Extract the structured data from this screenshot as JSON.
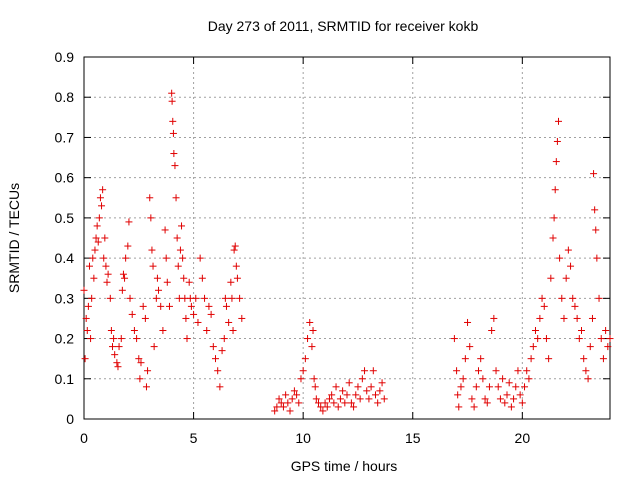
{
  "chart_data": {
    "type": "scatter",
    "title": "Day 273 of 2011, SRMTID for receiver kokb",
    "xlabel": "GPS time / hours",
    "ylabel": "SRMTID / TECUs",
    "xlim": [
      0,
      24
    ],
    "ylim": [
      0,
      0.9
    ],
    "grid": true,
    "marker": "+",
    "marker_color": "#e00000",
    "x_ticks": [
      0,
      5,
      10,
      15,
      20
    ],
    "x_tick_labels": [
      "0",
      "5",
      "10",
      "15",
      "20"
    ],
    "y_ticks": [
      0,
      0.1,
      0.2,
      0.3,
      0.4,
      0.5,
      0.6,
      0.7,
      0.8,
      0.9
    ],
    "y_tick_labels": [
      "0",
      "0.1",
      "0.2",
      "0.3",
      "0.4",
      "0.5",
      "0.6",
      "0.7",
      "0.8",
      "0.9"
    ],
    "series": [
      {
        "name": "SRMTID",
        "points": [
          [
            0.0,
            0.32
          ],
          [
            0.05,
            0.15
          ],
          [
            0.1,
            0.25
          ],
          [
            0.15,
            0.22
          ],
          [
            0.2,
            0.28
          ],
          [
            0.25,
            0.38
          ],
          [
            0.3,
            0.2
          ],
          [
            0.35,
            0.3
          ],
          [
            0.4,
            0.4
          ],
          [
            0.45,
            0.35
          ],
          [
            0.5,
            0.42
          ],
          [
            0.55,
            0.45
          ],
          [
            0.6,
            0.48
          ],
          [
            0.65,
            0.44
          ],
          [
            0.7,
            0.5
          ],
          [
            0.75,
            0.55
          ],
          [
            0.8,
            0.53
          ],
          [
            0.85,
            0.57
          ],
          [
            0.9,
            0.4
          ],
          [
            0.95,
            0.45
          ],
          [
            1.0,
            0.38
          ],
          [
            1.05,
            0.34
          ],
          [
            1.1,
            0.36
          ],
          [
            1.2,
            0.3
          ],
          [
            1.25,
            0.22
          ],
          [
            1.3,
            0.18
          ],
          [
            1.35,
            0.2
          ],
          [
            1.4,
            0.16
          ],
          [
            1.5,
            0.14
          ],
          [
            1.55,
            0.13
          ],
          [
            1.6,
            0.18
          ],
          [
            1.7,
            0.2
          ],
          [
            1.75,
            0.32
          ],
          [
            1.8,
            0.36
          ],
          [
            1.85,
            0.35
          ],
          [
            1.9,
            0.4
          ],
          [
            2.0,
            0.43
          ],
          [
            2.05,
            0.49
          ],
          [
            2.1,
            0.3
          ],
          [
            2.2,
            0.26
          ],
          [
            2.3,
            0.22
          ],
          [
            2.4,
            0.2
          ],
          [
            2.5,
            0.15
          ],
          [
            2.55,
            0.1
          ],
          [
            2.6,
            0.14
          ],
          [
            2.7,
            0.28
          ],
          [
            2.8,
            0.25
          ],
          [
            2.85,
            0.08
          ],
          [
            2.9,
            0.12
          ],
          [
            3.0,
            0.55
          ],
          [
            3.05,
            0.5
          ],
          [
            3.1,
            0.42
          ],
          [
            3.15,
            0.38
          ],
          [
            3.2,
            0.18
          ],
          [
            3.3,
            0.3
          ],
          [
            3.35,
            0.35
          ],
          [
            3.4,
            0.32
          ],
          [
            3.5,
            0.28
          ],
          [
            3.6,
            0.22
          ],
          [
            3.7,
            0.47
          ],
          [
            3.75,
            0.4
          ],
          [
            3.8,
            0.34
          ],
          [
            3.9,
            0.28
          ],
          [
            4.0,
            0.81
          ],
          [
            4.02,
            0.79
          ],
          [
            4.05,
            0.74
          ],
          [
            4.08,
            0.71
          ],
          [
            4.1,
            0.66
          ],
          [
            4.15,
            0.63
          ],
          [
            4.2,
            0.55
          ],
          [
            4.25,
            0.45
          ],
          [
            4.3,
            0.38
          ],
          [
            4.35,
            0.3
          ],
          [
            4.4,
            0.42
          ],
          [
            4.45,
            0.48
          ],
          [
            4.5,
            0.4
          ],
          [
            4.55,
            0.35
          ],
          [
            4.6,
            0.3
          ],
          [
            4.65,
            0.25
          ],
          [
            4.7,
            0.2
          ],
          [
            4.8,
            0.34
          ],
          [
            4.85,
            0.3
          ],
          [
            4.9,
            0.28
          ],
          [
            5.0,
            0.26
          ],
          [
            5.1,
            0.3
          ],
          [
            5.2,
            0.24
          ],
          [
            5.3,
            0.4
          ],
          [
            5.4,
            0.35
          ],
          [
            5.5,
            0.3
          ],
          [
            5.6,
            0.22
          ],
          [
            5.7,
            0.28
          ],
          [
            5.8,
            0.26
          ],
          [
            5.9,
            0.18
          ],
          [
            6.0,
            0.15
          ],
          [
            6.1,
            0.12
          ],
          [
            6.2,
            0.08
          ],
          [
            6.3,
            0.17
          ],
          [
            6.4,
            0.2
          ],
          [
            6.45,
            0.3
          ],
          [
            6.5,
            0.28
          ],
          [
            6.6,
            0.24
          ],
          [
            6.7,
            0.34
          ],
          [
            6.75,
            0.3
          ],
          [
            6.8,
            0.22
          ],
          [
            6.85,
            0.42
          ],
          [
            6.9,
            0.43
          ],
          [
            6.95,
            0.38
          ],
          [
            7.0,
            0.35
          ],
          [
            7.1,
            0.3
          ],
          [
            7.2,
            0.25
          ],
          [
            8.7,
            0.02
          ],
          [
            8.8,
            0.03
          ],
          [
            8.9,
            0.05
          ],
          [
            9.0,
            0.04
          ],
          [
            9.1,
            0.03
          ],
          [
            9.2,
            0.06
          ],
          [
            9.3,
            0.04
          ],
          [
            9.4,
            0.02
          ],
          [
            9.5,
            0.05
          ],
          [
            9.6,
            0.07
          ],
          [
            9.7,
            0.06
          ],
          [
            9.8,
            0.04
          ],
          [
            9.9,
            0.1
          ],
          [
            10.0,
            0.12
          ],
          [
            10.1,
            0.15
          ],
          [
            10.2,
            0.2
          ],
          [
            10.3,
            0.24
          ],
          [
            10.4,
            0.18
          ],
          [
            10.45,
            0.22
          ],
          [
            10.5,
            0.1
          ],
          [
            10.55,
            0.08
          ],
          [
            10.6,
            0.05
          ],
          [
            10.7,
            0.04
          ],
          [
            10.8,
            0.03
          ],
          [
            10.9,
            0.02
          ],
          [
            11.0,
            0.04
          ],
          [
            11.1,
            0.03
          ],
          [
            11.2,
            0.05
          ],
          [
            11.3,
            0.06
          ],
          [
            11.4,
            0.04
          ],
          [
            11.5,
            0.08
          ],
          [
            11.6,
            0.03
          ],
          [
            11.7,
            0.05
          ],
          [
            11.8,
            0.07
          ],
          [
            11.9,
            0.04
          ],
          [
            12.0,
            0.06
          ],
          [
            12.1,
            0.09
          ],
          [
            12.2,
            0.04
          ],
          [
            12.3,
            0.03
          ],
          [
            12.4,
            0.06
          ],
          [
            12.5,
            0.08
          ],
          [
            12.6,
            0.05
          ],
          [
            12.7,
            0.1
          ],
          [
            12.8,
            0.12
          ],
          [
            12.9,
            0.07
          ],
          [
            13.0,
            0.05
          ],
          [
            13.1,
            0.08
          ],
          [
            13.2,
            0.12
          ],
          [
            13.3,
            0.06
          ],
          [
            13.4,
            0.04
          ],
          [
            13.5,
            0.07
          ],
          [
            13.6,
            0.09
          ],
          [
            13.7,
            0.05
          ],
          [
            16.9,
            0.2
          ],
          [
            17.0,
            0.12
          ],
          [
            17.05,
            0.06
          ],
          [
            17.1,
            0.03
          ],
          [
            17.2,
            0.08
          ],
          [
            17.3,
            0.1
          ],
          [
            17.4,
            0.15
          ],
          [
            17.5,
            0.24
          ],
          [
            17.6,
            0.18
          ],
          [
            17.7,
            0.05
          ],
          [
            17.8,
            0.03
          ],
          [
            17.9,
            0.08
          ],
          [
            18.0,
            0.12
          ],
          [
            18.1,
            0.15
          ],
          [
            18.2,
            0.1
          ],
          [
            18.3,
            0.05
          ],
          [
            18.4,
            0.04
          ],
          [
            18.5,
            0.08
          ],
          [
            18.6,
            0.22
          ],
          [
            18.7,
            0.25
          ],
          [
            18.8,
            0.12
          ],
          [
            18.9,
            0.08
          ],
          [
            19.0,
            0.05
          ],
          [
            19.1,
            0.1
          ],
          [
            19.2,
            0.04
          ],
          [
            19.3,
            0.06
          ],
          [
            19.4,
            0.09
          ],
          [
            19.5,
            0.03
          ],
          [
            19.6,
            0.05
          ],
          [
            19.7,
            0.08
          ],
          [
            19.8,
            0.12
          ],
          [
            19.9,
            0.06
          ],
          [
            20.0,
            0.04
          ],
          [
            20.1,
            0.08
          ],
          [
            20.2,
            0.12
          ],
          [
            20.3,
            0.1
          ],
          [
            20.4,
            0.15
          ],
          [
            20.5,
            0.18
          ],
          [
            20.6,
            0.22
          ],
          [
            20.7,
            0.2
          ],
          [
            20.8,
            0.25
          ],
          [
            20.9,
            0.3
          ],
          [
            21.0,
            0.28
          ],
          [
            21.1,
            0.2
          ],
          [
            21.2,
            0.15
          ],
          [
            21.3,
            0.35
          ],
          [
            21.4,
            0.45
          ],
          [
            21.45,
            0.5
          ],
          [
            21.5,
            0.57
          ],
          [
            21.55,
            0.64
          ],
          [
            21.6,
            0.69
          ],
          [
            21.65,
            0.74
          ],
          [
            21.7,
            0.4
          ],
          [
            21.8,
            0.3
          ],
          [
            21.9,
            0.25
          ],
          [
            22.0,
            0.35
          ],
          [
            22.1,
            0.42
          ],
          [
            22.2,
            0.38
          ],
          [
            22.3,
            0.3
          ],
          [
            22.4,
            0.28
          ],
          [
            22.5,
            0.25
          ],
          [
            22.6,
            0.2
          ],
          [
            22.7,
            0.22
          ],
          [
            22.8,
            0.15
          ],
          [
            22.9,
            0.12
          ],
          [
            23.0,
            0.1
          ],
          [
            23.1,
            0.18
          ],
          [
            23.2,
            0.25
          ],
          [
            23.25,
            0.61
          ],
          [
            23.3,
            0.52
          ],
          [
            23.35,
            0.47
          ],
          [
            23.4,
            0.4
          ],
          [
            23.5,
            0.3
          ],
          [
            23.6,
            0.2
          ],
          [
            23.7,
            0.15
          ],
          [
            23.8,
            0.22
          ],
          [
            23.9,
            0.18
          ],
          [
            24.0,
            0.2
          ]
        ]
      }
    ]
  }
}
